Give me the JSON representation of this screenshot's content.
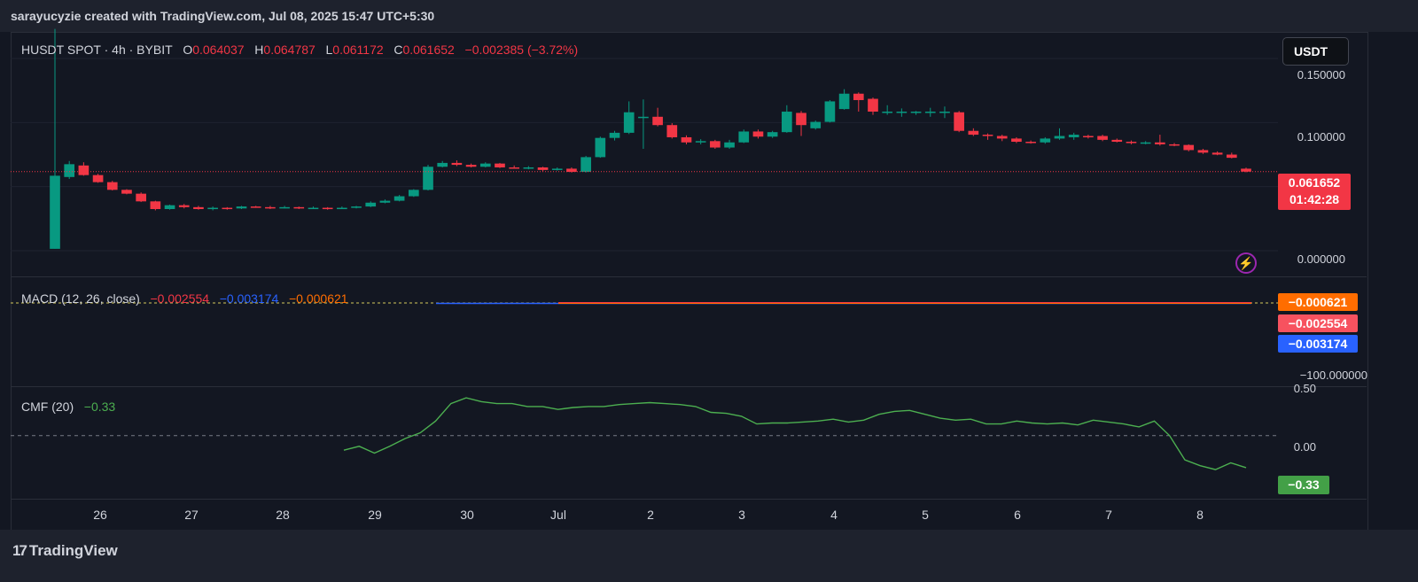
{
  "header": {
    "credit": "sarayucyzie created with TradingView.com, Jul 08, 2025 15:47 UTC+5:30"
  },
  "toolbar": {
    "currency_button": "USDT"
  },
  "footer": {
    "brand": "TradingView",
    "brand_mark": "17"
  },
  "price_pane": {
    "symbol": "HUSDT SPOT · 4h · BYBIT",
    "o_label": "O",
    "o_value": "0.064037",
    "h_label": "H",
    "h_value": "0.064787",
    "l_label": "L",
    "l_value": "0.061172",
    "c_label": "C",
    "c_value": "0.061652",
    "change": "−0.002385 (−3.72%)",
    "y_ticks": [
      "0.150000",
      "0.100000",
      "0.000000"
    ],
    "last_price": "0.061652",
    "countdown": "01:42:28"
  },
  "macd_pane": {
    "title": "MACD (12, 26, close)",
    "macd": "−0.002554",
    "signal": "−0.003174",
    "hist": "−0.000621",
    "y_tick": "−100.000000",
    "tags": {
      "hist": "−0.000621",
      "macd": "−0.002554",
      "signal": "−0.003174"
    }
  },
  "cmf_pane": {
    "title": "CMF (20)",
    "value": "−0.33",
    "y_ticks": [
      "0.50",
      "0.00"
    ],
    "tag": "−0.33"
  },
  "colors": {
    "up": "#089981",
    "down": "#f23645",
    "macd": "#f23645",
    "signal": "#2962ff",
    "hist": "#ff6d00",
    "cmf": "#4caf50"
  },
  "chart_data": {
    "type": "candlestick",
    "x_ticks": [
      "26",
      "27",
      "28",
      "29",
      "30",
      "Jul",
      "2",
      "3",
      "4",
      "5",
      "6",
      "7",
      "8"
    ],
    "price_range": [
      -0.02,
      0.17
    ],
    "candles": [
      [
        0.0015,
        0.0585,
        0.173,
        0.0015
      ],
      [
        0.0575,
        0.0675,
        0.07,
        0.056
      ],
      [
        0.0665,
        0.059,
        0.069,
        0.0585
      ],
      [
        0.059,
        0.0535,
        0.06,
        0.053
      ],
      [
        0.0535,
        0.0475,
        0.0545,
        0.047
      ],
      [
        0.0475,
        0.0445,
        0.048,
        0.044
      ],
      [
        0.0445,
        0.0385,
        0.0455,
        0.038
      ],
      [
        0.0385,
        0.0325,
        0.039,
        0.0315
      ],
      [
        0.0325,
        0.0355,
        0.036,
        0.032
      ],
      [
        0.0355,
        0.034,
        0.0365,
        0.033
      ],
      [
        0.034,
        0.0325,
        0.035,
        0.032
      ],
      [
        0.0325,
        0.0335,
        0.0345,
        0.0315
      ],
      [
        0.0335,
        0.033,
        0.034,
        0.032
      ],
      [
        0.033,
        0.0345,
        0.035,
        0.0325
      ],
      [
        0.0345,
        0.034,
        0.035,
        0.0335
      ],
      [
        0.034,
        0.0335,
        0.035,
        0.0325
      ],
      [
        0.0335,
        0.034,
        0.035,
        0.033
      ],
      [
        0.034,
        0.033,
        0.0345,
        0.0325
      ],
      [
        0.033,
        0.0335,
        0.0345,
        0.0325
      ],
      [
        0.0335,
        0.033,
        0.034,
        0.032
      ],
      [
        0.033,
        0.0335,
        0.0345,
        0.0325
      ],
      [
        0.0335,
        0.0345,
        0.035,
        0.033
      ],
      [
        0.0345,
        0.0375,
        0.0385,
        0.034
      ],
      [
        0.0375,
        0.039,
        0.04,
        0.037
      ],
      [
        0.039,
        0.0425,
        0.0435,
        0.0385
      ],
      [
        0.0425,
        0.0475,
        0.048,
        0.042
      ],
      [
        0.0475,
        0.0655,
        0.067,
        0.047
      ],
      [
        0.0655,
        0.0685,
        0.07,
        0.065
      ],
      [
        0.0685,
        0.067,
        0.0705,
        0.066
      ],
      [
        0.067,
        0.0655,
        0.068,
        0.065
      ],
      [
        0.0655,
        0.068,
        0.069,
        0.065
      ],
      [
        0.068,
        0.065,
        0.0685,
        0.0645
      ],
      [
        0.065,
        0.0645,
        0.0665,
        0.064
      ],
      [
        0.0645,
        0.065,
        0.066,
        0.0635
      ],
      [
        0.065,
        0.063,
        0.0655,
        0.062
      ],
      [
        0.063,
        0.064,
        0.065,
        0.0625
      ],
      [
        0.064,
        0.0615,
        0.065,
        0.061
      ],
      [
        0.0615,
        0.073,
        0.074,
        0.061
      ],
      [
        0.073,
        0.088,
        0.089,
        0.0725
      ],
      [
        0.088,
        0.092,
        0.0935,
        0.086
      ],
      [
        0.092,
        0.108,
        0.1165,
        0.091
      ],
      [
        0.1045,
        0.1045,
        0.118,
        0.0795
      ],
      [
        0.1045,
        0.098,
        0.1115,
        0.097
      ],
      [
        0.098,
        0.0885,
        0.0995,
        0.0875
      ],
      [
        0.0885,
        0.0845,
        0.09,
        0.083
      ],
      [
        0.0845,
        0.0855,
        0.087,
        0.083
      ],
      [
        0.0855,
        0.0805,
        0.0865,
        0.0795
      ],
      [
        0.0805,
        0.0845,
        0.0865,
        0.0795
      ],
      [
        0.0845,
        0.093,
        0.0945,
        0.084
      ],
      [
        0.093,
        0.089,
        0.0945,
        0.0875
      ],
      [
        0.089,
        0.0925,
        0.0935,
        0.088
      ],
      [
        0.0925,
        0.1085,
        0.1135,
        0.092
      ],
      [
        0.1075,
        0.098,
        0.109,
        0.0895
      ],
      [
        0.0955,
        0.1005,
        0.1015,
        0.0945
      ],
      [
        0.1005,
        0.1165,
        0.1175,
        0.1
      ],
      [
        0.1105,
        0.1225,
        0.126,
        0.11
      ],
      [
        0.1225,
        0.1175,
        0.1235,
        0.1085
      ],
      [
        0.1185,
        0.1085,
        0.1195,
        0.106
      ],
      [
        0.1085,
        0.1085,
        0.1135,
        0.106
      ],
      [
        0.1085,
        0.1085,
        0.111,
        0.1045
      ],
      [
        0.1085,
        0.1085,
        0.109,
        0.106
      ],
      [
        0.1085,
        0.1085,
        0.1115,
        0.1045
      ],
      [
        0.1085,
        0.1085,
        0.1125,
        0.1035
      ],
      [
        0.108,
        0.0935,
        0.109,
        0.0925
      ],
      [
        0.0935,
        0.0905,
        0.0955,
        0.0895
      ],
      [
        0.0905,
        0.0895,
        0.0915,
        0.0865
      ],
      [
        0.0895,
        0.0875,
        0.0905,
        0.0855
      ],
      [
        0.0875,
        0.085,
        0.0885,
        0.084
      ],
      [
        0.085,
        0.0845,
        0.086,
        0.0835
      ],
      [
        0.0845,
        0.0875,
        0.0885,
        0.0835
      ],
      [
        0.0875,
        0.0895,
        0.0955,
        0.0865
      ],
      [
        0.0885,
        0.0905,
        0.092,
        0.0865
      ],
      [
        0.0895,
        0.0885,
        0.0905,
        0.0875
      ],
      [
        0.0895,
        0.0865,
        0.0905,
        0.0855
      ],
      [
        0.0865,
        0.085,
        0.0875,
        0.0845
      ],
      [
        0.085,
        0.0845,
        0.086,
        0.083
      ],
      [
        0.0845,
        0.0845,
        0.0855,
        0.083
      ],
      [
        0.0845,
        0.083,
        0.0905,
        0.082
      ],
      [
        0.083,
        0.0825,
        0.084,
        0.0815
      ],
      [
        0.0825,
        0.0785,
        0.083,
        0.0775
      ],
      [
        0.0785,
        0.0765,
        0.0795,
        0.0755
      ],
      [
        0.0765,
        0.075,
        0.0775,
        0.0745
      ],
      [
        0.075,
        0.0725,
        0.0765,
        0.072
      ],
      [
        0.064,
        0.0617,
        0.0648,
        0.0612
      ]
    ],
    "macd_range": [
      -130,
      40
    ],
    "macd_line_series": {
      "value": -0.002554
    },
    "cmf_range": [
      -0.65,
      0.5
    ],
    "cmf": [
      -0.15,
      -0.11,
      -0.18,
      -0.11,
      -0.03,
      0.03,
      0.15,
      0.33,
      0.39,
      0.35,
      0.33,
      0.33,
      0.3,
      0.3,
      0.27,
      0.29,
      0.3,
      0.3,
      0.32,
      0.33,
      0.34,
      0.33,
      0.32,
      0.3,
      0.24,
      0.23,
      0.2,
      0.12,
      0.13,
      0.13,
      0.14,
      0.15,
      0.17,
      0.14,
      0.16,
      0.22,
      0.25,
      0.26,
      0.22,
      0.18,
      0.16,
      0.17,
      0.12,
      0.12,
      0.15,
      0.13,
      0.12,
      0.13,
      0.11,
      0.16,
      0.14,
      0.12,
      0.09,
      0.15,
      0.0,
      -0.25,
      -0.31,
      -0.35,
      -0.28,
      -0.33
    ]
  }
}
